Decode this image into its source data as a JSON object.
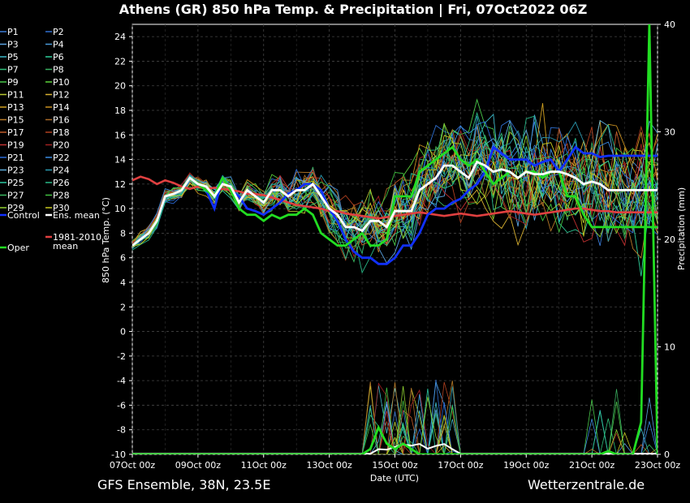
{
  "chart_data": {
    "type": "line",
    "title": "Athens  (GR)  850 hPa Temp. & Precipitation | Fri, 07Oct2022 06Z",
    "xlabel": "Date (UTC)",
    "ylabel": "850 hPa Temp. (°C)",
    "y2label": "Precipitation (mm)",
    "ylim": [
      -10,
      25
    ],
    "y2lim": [
      0,
      40
    ],
    "yticks": [
      -10,
      -8,
      -6,
      -4,
      -2,
      0,
      2,
      4,
      6,
      8,
      10,
      12,
      14,
      16,
      18,
      20,
      22,
      24
    ],
    "y2ticks": [
      0,
      10,
      20,
      30,
      40
    ],
    "xlim": [
      0,
      64
    ],
    "xticks": [
      {
        "x": 0,
        "label": "07Oct 00z"
      },
      {
        "x": 8,
        "label": "09Oct 00z"
      },
      {
        "x": 16,
        "label": "11Oct 00z"
      },
      {
        "x": 24,
        "label": "13Oct 00z"
      },
      {
        "x": 32,
        "label": "15Oct 00z"
      },
      {
        "x": 40,
        "label": "17Oct 00z"
      },
      {
        "x": 48,
        "label": "19Oct 00z"
      },
      {
        "x": 56,
        "label": "21Oct 00z"
      },
      {
        "x": 64,
        "label": "23Oct 00z"
      }
    ],
    "grid": true,
    "legend_position": "left",
    "members": [
      {
        "name": "P1",
        "color": "#3a7bd5"
      },
      {
        "name": "P2",
        "color": "#2f6fd0"
      },
      {
        "name": "P3",
        "color": "#5ba3e0"
      },
      {
        "name": "P4",
        "color": "#4a9ad8"
      },
      {
        "name": "P5",
        "color": "#3cb8c8"
      },
      {
        "name": "P6",
        "color": "#2ecf9a"
      },
      {
        "name": "P7",
        "color": "#2fbf7a"
      },
      {
        "name": "P8",
        "color": "#3aaf60"
      },
      {
        "name": "P9",
        "color": "#49c84a"
      },
      {
        "name": "P10",
        "color": "#5ad23a"
      },
      {
        "name": "P11",
        "color": "#b8c830"
      },
      {
        "name": "P12",
        "color": "#d8b030"
      },
      {
        "name": "P13",
        "color": "#d0a020"
      },
      {
        "name": "P14",
        "color": "#c89020"
      },
      {
        "name": "P15",
        "color": "#b87a28"
      },
      {
        "name": "P16",
        "color": "#a86a28"
      },
      {
        "name": "P17",
        "color": "#c05a28"
      },
      {
        "name": "P18",
        "color": "#b04020"
      },
      {
        "name": "P19",
        "color": "#c03030"
      },
      {
        "name": "P20",
        "color": "#a02020"
      },
      {
        "name": "P21",
        "color": "#2a6ad8"
      },
      {
        "name": "P22",
        "color": "#3a8ae0"
      },
      {
        "name": "P23",
        "color": "#5aaad8"
      },
      {
        "name": "P24",
        "color": "#2a9ab0"
      },
      {
        "name": "P25",
        "color": "#2ac8a0"
      },
      {
        "name": "P26",
        "color": "#28b888"
      },
      {
        "name": "P27",
        "color": "#3ab860"
      },
      {
        "name": "P28",
        "color": "#40c040"
      },
      {
        "name": "P29",
        "color": "#90d030"
      },
      {
        "name": "P30",
        "color": "#c8c820"
      }
    ],
    "control": {
      "name": "Control",
      "color": "#1030ff",
      "temp": [
        7,
        7.5,
        8,
        9,
        11,
        11.2,
        11.5,
        12.5,
        12,
        11.5,
        10,
        12.5,
        11.5,
        11,
        10,
        9.8,
        9.5,
        10,
        10.5,
        11.2,
        11.5,
        12,
        12,
        11.5,
        10,
        9,
        7.5,
        6.5,
        6,
        6,
        5.5,
        5.5,
        6,
        7,
        7,
        8,
        9.5,
        10,
        10,
        10.5,
        10.8,
        11.5,
        12,
        13,
        15,
        14.5,
        14,
        14,
        14,
        13.5,
        13.8,
        14,
        13,
        14,
        15,
        14.5,
        14.5,
        14.2,
        14.3,
        14.3,
        14.3,
        14.3,
        14.3,
        14.3,
        14.3
      ]
    },
    "ens_mean": {
      "name": "Ens. mean",
      "color": "#ffffff",
      "temp": [
        7,
        7.5,
        8,
        9,
        11,
        11.2,
        11.5,
        12.5,
        12,
        11.8,
        11,
        12,
        11.8,
        10.5,
        11.5,
        11,
        10.5,
        11.5,
        11.5,
        11,
        11.5,
        11.5,
        12,
        11,
        10,
        9.5,
        8.5,
        8.5,
        8.2,
        9,
        9,
        8.5,
        9.8,
        9.8,
        9.8,
        11.5,
        12,
        12.5,
        13.5,
        13.5,
        13,
        12.5,
        13.8,
        13.5,
        13,
        13.2,
        13,
        12.5,
        13,
        12.8,
        12.8,
        13,
        13,
        12.8,
        12.5,
        12,
        12.2,
        12,
        11.5,
        11.5,
        11.5,
        11.5,
        11.5,
        11.5,
        11.5
      ]
    },
    "clim_mean": {
      "name": "1981-2010 mean",
      "color": "#e04040",
      "temp": [
        12.3,
        12.6,
        12.4,
        12,
        12.3,
        12.1,
        11.8,
        11.6,
        11.8,
        11.6,
        11.7,
        11.6,
        11.5,
        11.4,
        11.2,
        11.2,
        11.1,
        10.9,
        10.7,
        10.5,
        10.3,
        10.2,
        10.1,
        10,
        9.8,
        9.8,
        9.6,
        9.5,
        9.4,
        9.3,
        9.2,
        9.3,
        9.4,
        9.5,
        9.6,
        9.7,
        9.6,
        9.5,
        9.4,
        9.5,
        9.6,
        9.5,
        9.4,
        9.5,
        9.6,
        9.7,
        9.8,
        9.7,
        9.6,
        9.5,
        9.6,
        9.7,
        9.8,
        9.9,
        10,
        10,
        9.9,
        9.8,
        9.8,
        9.7,
        9.7,
        9.7,
        9.7,
        9.7,
        9.7
      ]
    },
    "oper": {
      "name": "Oper",
      "color": "#22dd22",
      "temp": [
        7,
        7.5,
        8,
        9,
        11,
        11.2,
        11.5,
        12.5,
        12,
        11.5,
        11,
        12.5,
        11.5,
        10,
        9.5,
        9.5,
        9,
        9.5,
        9.2,
        9.5,
        9.5,
        10,
        9.5,
        8,
        7.5,
        7,
        7,
        7.5,
        8,
        7,
        7,
        7.5,
        11,
        11,
        11,
        13,
        13.5,
        14,
        14.5,
        15,
        14,
        13.5,
        14,
        13,
        12,
        12.5,
        13,
        12.5,
        13,
        13,
        12.5,
        13,
        13,
        11,
        11,
        9.5,
        8.5,
        8.5,
        8.5,
        8.5,
        8.5,
        8.5,
        8.5,
        8.5,
        8.5
      ],
      "precip": [
        0,
        0,
        0,
        0,
        0,
        0,
        0,
        0,
        0,
        0,
        0,
        0,
        0,
        0,
        0,
        0,
        0,
        0,
        0,
        0,
        0,
        0,
        0,
        0,
        0,
        0,
        0,
        0,
        0,
        0.5,
        2.5,
        1,
        0.5,
        1,
        0.5,
        0,
        0,
        0,
        0,
        0,
        0,
        0,
        0,
        0,
        0,
        0,
        0,
        0,
        0,
        0,
        0,
        0,
        0,
        0,
        0,
        0,
        0,
        0,
        0.3,
        0,
        0,
        0,
        3,
        40,
        0
      ]
    }
  },
  "footer": {
    "left": "GFS Ensemble, 38N, 23.5E",
    "right": "Wetterzentrale.de"
  }
}
